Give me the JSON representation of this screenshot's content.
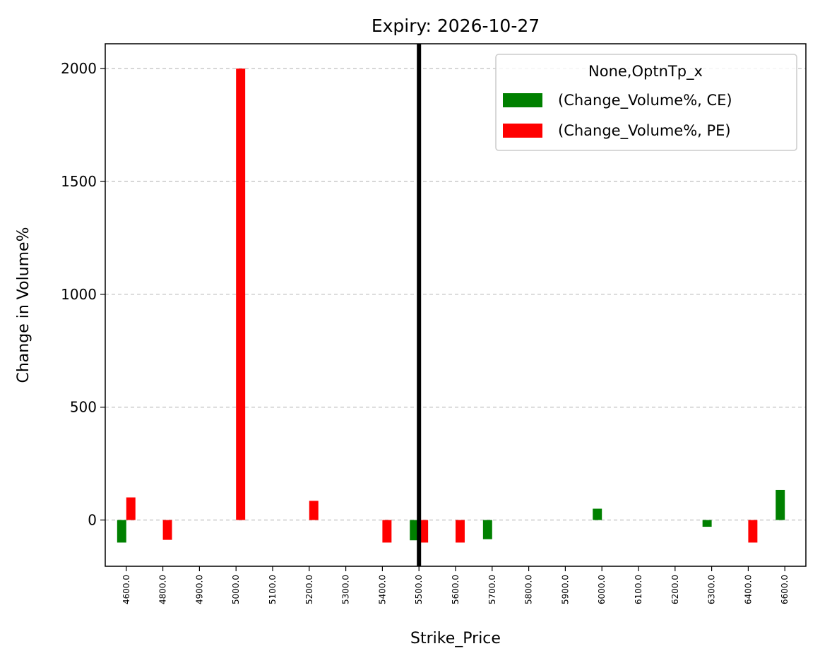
{
  "chart_data": {
    "type": "bar",
    "title": "Expiry: 2026-10-27",
    "xlabel": "Strike_Price",
    "ylabel": "Change in Volume%",
    "categories": [
      "4600.0",
      "4800.0",
      "4900.0",
      "5000.0",
      "5100.0",
      "5200.0",
      "5300.0",
      "5400.0",
      "5500.0",
      "5600.0",
      "5700.0",
      "5800.0",
      "5900.0",
      "6000.0",
      "6100.0",
      "6200.0",
      "6300.0",
      "6400.0",
      "6600.0"
    ],
    "series": [
      {
        "name": "(Change_Volume%, CE)",
        "color": "#008000",
        "values": [
          -100,
          null,
          null,
          null,
          null,
          null,
          null,
          null,
          -90,
          null,
          -85,
          null,
          null,
          50,
          null,
          null,
          -30,
          null,
          133
        ]
      },
      {
        "name": "(Change_Volume%, PE)",
        "color": "#ff0000",
        "values": [
          100,
          -88,
          null,
          2000,
          null,
          85,
          null,
          -100,
          -100,
          -100,
          null,
          null,
          null,
          null,
          null,
          null,
          null,
          -100,
          null
        ]
      }
    ],
    "ylim": [
      -205,
      2110
    ],
    "yticks": [
      0,
      500,
      1000,
      1500,
      2000
    ],
    "grid": "y-dashed",
    "legend": {
      "title": "None,OptnTp_x",
      "placement": "top-right"
    },
    "reference_line": {
      "category": "5500.0",
      "color": "#000000"
    }
  }
}
